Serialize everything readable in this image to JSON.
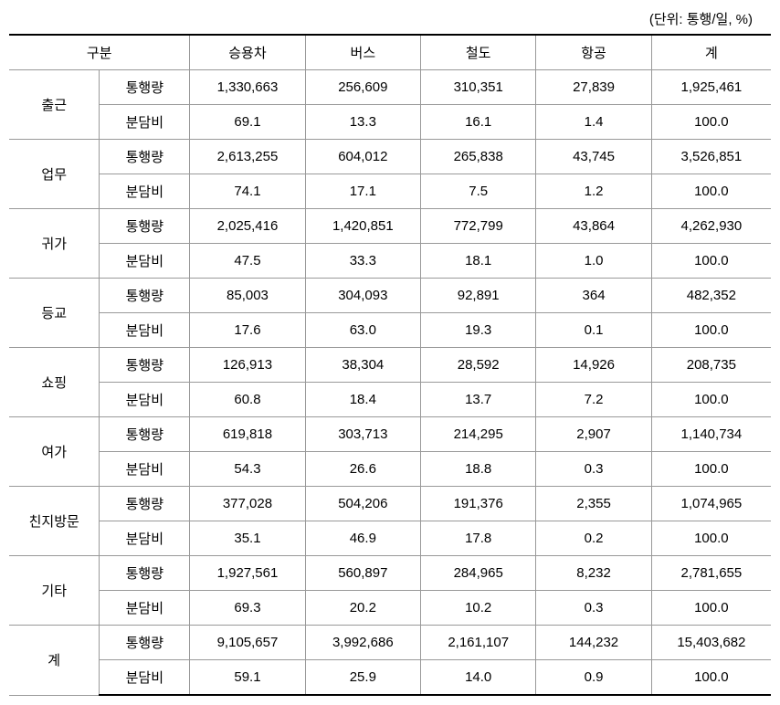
{
  "unit_label": "(단위: 통행/일, %)",
  "headers": {
    "gubun": "구분",
    "col1": "승용차",
    "col2": "버스",
    "col3": "철도",
    "col4": "항공",
    "col5": "계"
  },
  "rows": [
    {
      "category": "출근",
      "sub": [
        {
          "label": "통행량",
          "vals": [
            "1,330,663",
            "256,609",
            "310,351",
            "27,839",
            "1,925,461"
          ]
        },
        {
          "label": "분담비",
          "vals": [
            "69.1",
            "13.3",
            "16.1",
            "1.4",
            "100.0"
          ]
        }
      ]
    },
    {
      "category": "업무",
      "sub": [
        {
          "label": "통행량",
          "vals": [
            "2,613,255",
            "604,012",
            "265,838",
            "43,745",
            "3,526,851"
          ]
        },
        {
          "label": "분담비",
          "vals": [
            "74.1",
            "17.1",
            "7.5",
            "1.2",
            "100.0"
          ]
        }
      ]
    },
    {
      "category": "귀가",
      "sub": [
        {
          "label": "통행량",
          "vals": [
            "2,025,416",
            "1,420,851",
            "772,799",
            "43,864",
            "4,262,930"
          ]
        },
        {
          "label": "분담비",
          "vals": [
            "47.5",
            "33.3",
            "18.1",
            "1.0",
            "100.0"
          ]
        }
      ]
    },
    {
      "category": "등교",
      "sub": [
        {
          "label": "통행량",
          "vals": [
            "85,003",
            "304,093",
            "92,891",
            "364",
            "482,352"
          ]
        },
        {
          "label": "분담비",
          "vals": [
            "17.6",
            "63.0",
            "19.3",
            "0.1",
            "100.0"
          ]
        }
      ]
    },
    {
      "category": "쇼핑",
      "sub": [
        {
          "label": "통행량",
          "vals": [
            "126,913",
            "38,304",
            "28,592",
            "14,926",
            "208,735"
          ]
        },
        {
          "label": "분담비",
          "vals": [
            "60.8",
            "18.4",
            "13.7",
            "7.2",
            "100.0"
          ]
        }
      ]
    },
    {
      "category": "여가",
      "sub": [
        {
          "label": "통행량",
          "vals": [
            "619,818",
            "303,713",
            "214,295",
            "2,907",
            "1,140,734"
          ]
        },
        {
          "label": "분담비",
          "vals": [
            "54.3",
            "26.6",
            "18.8",
            "0.3",
            "100.0"
          ]
        }
      ]
    },
    {
      "category": "친지방문",
      "sub": [
        {
          "label": "통행량",
          "vals": [
            "377,028",
            "504,206",
            "191,376",
            "2,355",
            "1,074,965"
          ]
        },
        {
          "label": "분담비",
          "vals": [
            "35.1",
            "46.9",
            "17.8",
            "0.2",
            "100.0"
          ]
        }
      ]
    },
    {
      "category": "기타",
      "sub": [
        {
          "label": "통행량",
          "vals": [
            "1,927,561",
            "560,897",
            "284,965",
            "8,232",
            "2,781,655"
          ]
        },
        {
          "label": "분담비",
          "vals": [
            "69.3",
            "20.2",
            "10.2",
            "0.3",
            "100.0"
          ]
        }
      ]
    },
    {
      "category": "계",
      "sub": [
        {
          "label": "통행량",
          "vals": [
            "9,105,657",
            "3,992,686",
            "2,161,107",
            "144,232",
            "15,403,682"
          ]
        },
        {
          "label": "분담비",
          "vals": [
            "59.1",
            "25.9",
            "14.0",
            "0.9",
            "100.0"
          ]
        }
      ]
    }
  ],
  "style": {
    "background_color": "#ffffff",
    "text_color": "#000000",
    "border_color": "#999999",
    "heavy_border_color": "#000000",
    "font_size": 15,
    "font_family": "Malgun Gothic",
    "heavy_border_width": 2,
    "light_border_width": 1,
    "cell_padding": 8,
    "column_widths": {
      "category1": 90,
      "category2": 90,
      "data": 115,
      "last": 119
    }
  }
}
